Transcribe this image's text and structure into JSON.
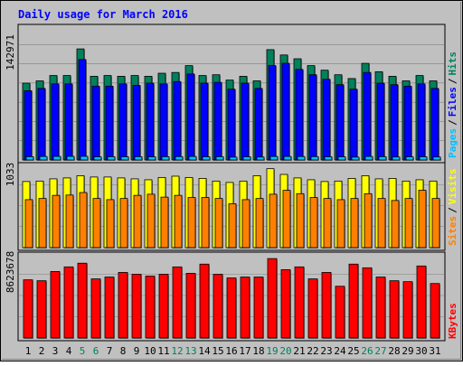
{
  "chart_data": [
    {
      "type": "bar",
      "title": "Daily usage for March 2016",
      "categories": [
        "1",
        "2",
        "3",
        "4",
        "5",
        "6",
        "7",
        "8",
        "9",
        "10",
        "11",
        "12",
        "13",
        "14",
        "15",
        "16",
        "17",
        "18",
        "19",
        "20",
        "21",
        "22",
        "23",
        "24",
        "25",
        "26",
        "27",
        "28",
        "29",
        "30",
        "31"
      ],
      "weekend_days": [
        "5",
        "6",
        "12",
        "13",
        "19",
        "20",
        "26",
        "27"
      ],
      "y_tick_label": "142971",
      "ylim": [
        0,
        177000
      ],
      "ylabel_parts": [
        "Pages",
        "/",
        "Files",
        "/",
        "Hits"
      ],
      "series": [
        {
          "name": "Hits",
          "values": [
            101000,
            104000,
            111000,
            111000,
            146000,
            110000,
            111000,
            110000,
            111000,
            110000,
            114000,
            115000,
            124000,
            111000,
            112000,
            105000,
            110000,
            104000,
            145000,
            138000,
            133000,
            124000,
            118000,
            112000,
            107000,
            127000,
            116000,
            110000,
            104000,
            111000,
            104000
          ]
        },
        {
          "name": "Files",
          "values": [
            91000,
            94000,
            100000,
            100000,
            132000,
            97000,
            97000,
            100000,
            98000,
            101000,
            100000,
            103000,
            113000,
            101000,
            102000,
            93000,
            101000,
            94000,
            124000,
            127000,
            119000,
            112000,
            106000,
            99000,
            93000,
            115000,
            101000,
            99000,
            97000,
            100000,
            94000
          ]
        },
        {
          "name": "Pages",
          "values": [
            4300,
            4600,
            4700,
            4700,
            4800,
            4100,
            4300,
            4200,
            4300,
            4100,
            4300,
            4400,
            4600,
            4200,
            4300,
            3700,
            4200,
            3800,
            4600,
            4600,
            4500,
            4400,
            4200,
            4100,
            3700,
            4600,
            4300,
            3900,
            4100,
            4200,
            3900
          ]
        }
      ]
    },
    {
      "type": "bar",
      "categories": [
        "1",
        "2",
        "3",
        "4",
        "5",
        "6",
        "7",
        "8",
        "9",
        "10",
        "11",
        "12",
        "13",
        "14",
        "15",
        "16",
        "17",
        "18",
        "19",
        "20",
        "21",
        "22",
        "23",
        "24",
        "25",
        "26",
        "27",
        "28",
        "29",
        "30",
        "31"
      ],
      "y_tick_label": "1033",
      "ylim": [
        0,
        1100
      ],
      "ylabel_parts": [
        "Sites",
        "/",
        "Visits"
      ],
      "series": [
        {
          "name": "Visits",
          "values": [
            865,
            871,
            900,
            912,
            941,
            924,
            924,
            912,
            900,
            888,
            918,
            935,
            918,
            906,
            871,
            853,
            871,
            941,
            1033,
            958,
            912,
            888,
            865,
            871,
            906,
            941,
            900,
            906,
            871,
            888,
            871
          ]
        },
        {
          "name": "Sites",
          "values": [
            628,
            643,
            684,
            688,
            721,
            643,
            628,
            643,
            684,
            699,
            661,
            684,
            656,
            656,
            643,
            574,
            628,
            643,
            699,
            750,
            706,
            656,
            643,
            628,
            643,
            706,
            643,
            617,
            643,
            751,
            643
          ]
        }
      ]
    },
    {
      "type": "bar",
      "categories": [
        "1",
        "2",
        "3",
        "4",
        "5",
        "6",
        "7",
        "8",
        "9",
        "10",
        "11",
        "12",
        "13",
        "14",
        "15",
        "16",
        "17",
        "18",
        "19",
        "20",
        "21",
        "22",
        "23",
        "24",
        "25",
        "26",
        "27",
        "28",
        "29",
        "30",
        "31"
      ],
      "y_tick_label": "8623678",
      "ylim": [
        0,
        9200000
      ],
      "ylabel_parts": [
        "KBytes"
      ],
      "series": [
        {
          "name": "KBytes",
          "values": [
            6300000,
            6200000,
            7200000,
            7700000,
            8100000,
            6400000,
            6600000,
            7100000,
            6900000,
            6700000,
            6900000,
            7700000,
            7000000,
            8000000,
            6900000,
            6500000,
            6600000,
            6600000,
            8600000,
            7400000,
            7700000,
            6400000,
            7100000,
            5600000,
            8000000,
            7600000,
            6600000,
            6200000,
            6100000,
            7800000,
            5900000
          ]
        }
      ]
    }
  ],
  "colors": {
    "frame_bg": "#c0c0c0",
    "title": "#0000ff",
    "hits": "#00805c",
    "files": "#0000ff",
    "pages": "#00c0ff",
    "visits": "#ffff00",
    "sites": "#ff8000",
    "kbytes": "#ff0000",
    "weekend_label": "#00805c",
    "weekday_label": "#000000"
  }
}
